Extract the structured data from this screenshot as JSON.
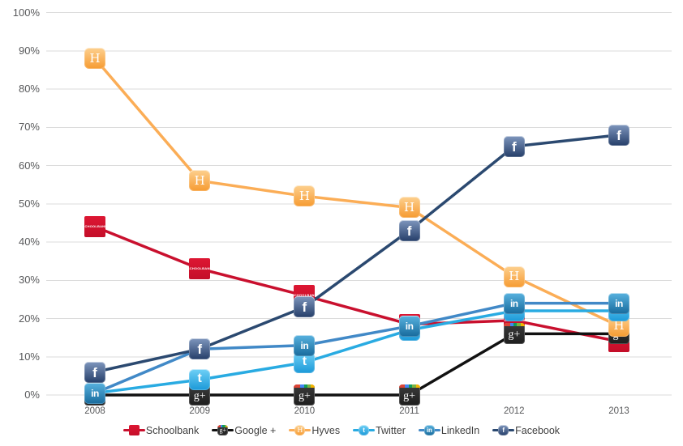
{
  "chart_data": {
    "type": "line",
    "title": "",
    "categories": [
      "2008",
      "2009",
      "2010",
      "2011",
      "2012",
      "2013"
    ],
    "ytick_labels": [
      "0%",
      "10%",
      "20%",
      "30%",
      "40%",
      "50%",
      "60%",
      "70%",
      "80%",
      "90%",
      "100%"
    ],
    "ylim": [
      0,
      100
    ],
    "ytick_step": 10,
    "grid": "horizontal",
    "grid_color": "#DBDBDB",
    "axis_text_color": "#58595B",
    "legend_position": "bottom-center",
    "legend_text_color": "#3F3F3F",
    "series": [
      {
        "name": "Schoolbank",
        "key": "schoolbank",
        "icon": "schoolbank-icon",
        "color": "#C9102E",
        "icon_bg": [
          "#DD1733",
          "#C40E29"
        ],
        "icon_label": "SCHOOLBANK",
        "values": [
          44,
          33,
          26,
          18.5,
          19.5,
          14
        ]
      },
      {
        "name": "Google +",
        "key": "googleplus",
        "icon": "googleplus-icon",
        "color": "#111111",
        "icon_bg": [
          "#3C3C3C",
          "#1E1E1E"
        ],
        "icon_label": "g+",
        "stripe_colors": [
          "#DB4437",
          "#4285F4",
          "#0F9D58",
          "#7CB342",
          "#F4B400"
        ],
        "values": [
          0,
          0,
          0,
          0,
          16,
          16
        ]
      },
      {
        "name": "Hyves",
        "key": "hyves",
        "icon": "hyves-icon",
        "color": "#FBAD56",
        "icon_bg": [
          "#FDD08F",
          "#F69B31"
        ],
        "icon_label": "H",
        "values": [
          88,
          56,
          52,
          49,
          31,
          18
        ]
      },
      {
        "name": "Twitter",
        "key": "twitter",
        "icon": "twitter-icon",
        "color": "#29ABE2",
        "icon_bg": [
          "#6FD0F6",
          "#1B99D8"
        ],
        "icon_label": "t",
        "values": [
          0.5,
          4,
          8.5,
          17,
          22,
          22
        ]
      },
      {
        "name": "LinkedIn",
        "key": "linkedin",
        "icon": "linkedin-icon",
        "color": "#4189C7",
        "icon_bg": [
          "#58B2DF",
          "#176A9C"
        ],
        "icon_label": "in",
        "values": [
          0.5,
          12,
          13,
          18,
          24,
          24
        ]
      },
      {
        "name": "Facebook",
        "key": "facebook",
        "icon": "facebook-icon",
        "color": "#2B4970",
        "icon_bg": [
          "#7E96BD",
          "#253E69"
        ],
        "icon_label": "f",
        "values": [
          6,
          12,
          23,
          43,
          65,
          68
        ]
      }
    ]
  }
}
